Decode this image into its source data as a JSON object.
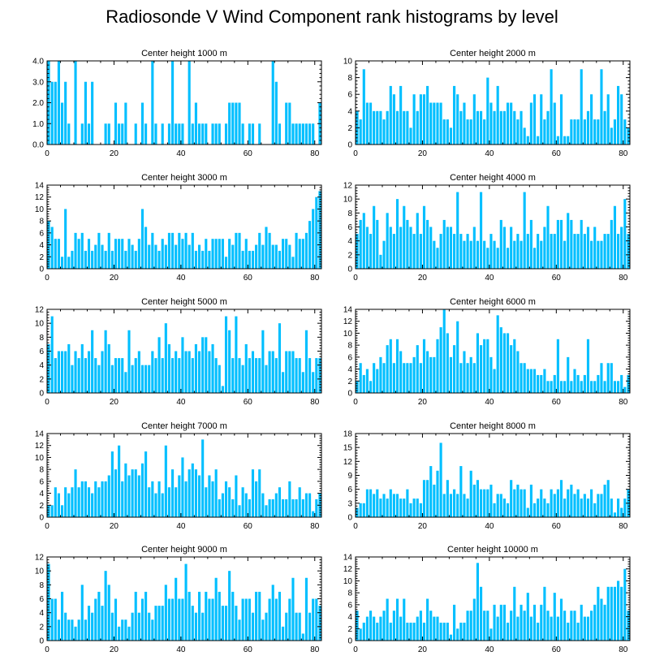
{
  "title": "Radiosonde V Wind Component rank histograms by level",
  "bar_color": "#00BFFF",
  "chart_data": [
    {
      "type": "bar",
      "title": "Center height 1000 m",
      "ylim": [
        0,
        4
      ],
      "yticks": [
        0,
        1,
        2,
        3,
        4
      ],
      "ytick_labels": [
        "0.0",
        "1.0",
        "2.0",
        "3.0",
        "4.0"
      ],
      "xticks": [
        0,
        20,
        40,
        60,
        80
      ],
      "xlim": [
        0,
        82
      ],
      "values": [
        4,
        3,
        3,
        4,
        2,
        3,
        1,
        0,
        4,
        0,
        1,
        3,
        1,
        3,
        0,
        0,
        0,
        1,
        1,
        0,
        2,
        1,
        1,
        2,
        0,
        0,
        1,
        0,
        2,
        1,
        0,
        4,
        1,
        0,
        1,
        0,
        1,
        4,
        1,
        1,
        1,
        0,
        4,
        1,
        2,
        1,
        1,
        1,
        0,
        1,
        1,
        1,
        0,
        1,
        2,
        2,
        2,
        2,
        1,
        0,
        1,
        1,
        0,
        1,
        0,
        0,
        0,
        4,
        3,
        1,
        0,
        2,
        2,
        1,
        1,
        1,
        1,
        1,
        1,
        1,
        0,
        2
      ]
    },
    {
      "type": "bar",
      "title": "Center height 2000 m",
      "ylim": [
        0,
        10
      ],
      "yticks": [
        0,
        2,
        4,
        6,
        8,
        10
      ],
      "ytick_labels": [
        "0",
        "2",
        "4",
        "6",
        "8",
        "10"
      ],
      "xticks": [
        0,
        20,
        40,
        60,
        80
      ],
      "xlim": [
        0,
        82
      ],
      "values": [
        4,
        3,
        9,
        5,
        5,
        4,
        4,
        4,
        3,
        4,
        7,
        6,
        4,
        7,
        4,
        4,
        2,
        6,
        4,
        6,
        6,
        7,
        5,
        5,
        5,
        5,
        3,
        3,
        2,
        7,
        6,
        4,
        5,
        3,
        3,
        6,
        4,
        4,
        3,
        8,
        5,
        4,
        7,
        4,
        4,
        5,
        5,
        4,
        3,
        4,
        2,
        1,
        5,
        6,
        1,
        6,
        3,
        4,
        9,
        5,
        1,
        6,
        1,
        1,
        3,
        3,
        3,
        9,
        3,
        4,
        6,
        3,
        3,
        9,
        4,
        6,
        2,
        3,
        7,
        6,
        3,
        2
      ]
    },
    {
      "type": "bar",
      "title": "Center height 3000 m",
      "ylim": [
        0,
        14
      ],
      "yticks": [
        0,
        2,
        4,
        6,
        8,
        10,
        12,
        14
      ],
      "ytick_labels": [
        "0",
        "2",
        "4",
        "6",
        "8",
        "10",
        "12",
        "14"
      ],
      "xticks": [
        0,
        20,
        40,
        60,
        80
      ],
      "xlim": [
        0,
        82
      ],
      "values": [
        8,
        7,
        5,
        5,
        2,
        10,
        2,
        3,
        6,
        5,
        6,
        3,
        5,
        3,
        4,
        6,
        4,
        3,
        6,
        3,
        5,
        5,
        5,
        3,
        5,
        4,
        3,
        5,
        10,
        7,
        4,
        6,
        4,
        3,
        5,
        4,
        6,
        6,
        4,
        6,
        5,
        6,
        4,
        6,
        3,
        4,
        3,
        5,
        3,
        5,
        5,
        5,
        5,
        2,
        5,
        4,
        6,
        6,
        3,
        5,
        3,
        3,
        4,
        6,
        4,
        7,
        6,
        4,
        4,
        3,
        5,
        5,
        4,
        2,
        6,
        5,
        5,
        6,
        8,
        10,
        12,
        13
      ]
    },
    {
      "type": "bar",
      "title": "Center height 4000 m",
      "ylim": [
        0,
        12
      ],
      "yticks": [
        0,
        2,
        4,
        6,
        8,
        10,
        12
      ],
      "ytick_labels": [
        "0",
        "2",
        "4",
        "6",
        "8",
        "10",
        "12"
      ],
      "xticks": [
        0,
        20,
        40,
        60,
        80
      ],
      "xlim": [
        0,
        82
      ],
      "values": [
        5,
        7,
        8,
        6,
        5,
        9,
        7,
        2,
        4,
        8,
        6,
        5,
        10,
        6,
        9,
        7,
        6,
        5,
        8,
        5,
        9,
        7,
        6,
        4,
        3,
        5,
        7,
        6,
        6,
        5,
        11,
        5,
        4,
        5,
        4,
        6,
        4,
        11,
        4,
        3,
        5,
        4,
        3,
        7,
        6,
        3,
        6,
        4,
        5,
        4,
        11,
        5,
        7,
        3,
        5,
        4,
        6,
        9,
        5,
        5,
        7,
        7,
        4,
        8,
        7,
        5,
        5,
        7,
        5,
        6,
        4,
        6,
        4,
        4,
        5,
        5,
        7,
        9,
        5,
        6,
        10,
        5
      ]
    },
    {
      "type": "bar",
      "title": "Center height 5000 m",
      "ylim": [
        0,
        12
      ],
      "yticks": [
        0,
        2,
        4,
        6,
        8,
        10,
        12
      ],
      "ytick_labels": [
        "0",
        "2",
        "4",
        "6",
        "8",
        "10",
        "12"
      ],
      "xticks": [
        0,
        20,
        40,
        60,
        80
      ],
      "xlim": [
        0,
        82
      ],
      "values": [
        7,
        11,
        5,
        6,
        6,
        6,
        7,
        4,
        6,
        5,
        7,
        5,
        6,
        9,
        5,
        4,
        6,
        9,
        7,
        4,
        5,
        5,
        5,
        3,
        9,
        4,
        5,
        6,
        4,
        4,
        4,
        6,
        5,
        8,
        5,
        10,
        7,
        5,
        6,
        5,
        8,
        6,
        6,
        5,
        7,
        6,
        8,
        8,
        6,
        7,
        5,
        4,
        1,
        11,
        9,
        5,
        11,
        5,
        4,
        7,
        5,
        6,
        5,
        5,
        9,
        4,
        6,
        6,
        5,
        10,
        3,
        6,
        6,
        6,
        5,
        5,
        3,
        9,
        5,
        3,
        5,
        5
      ]
    },
    {
      "type": "bar",
      "title": "Center height 6000 m",
      "ylim": [
        0,
        14
      ],
      "yticks": [
        0,
        2,
        4,
        6,
        8,
        10,
        12,
        14
      ],
      "ytick_labels": [
        "0",
        "2",
        "4",
        "6",
        "8",
        "10",
        "12",
        "14"
      ],
      "xticks": [
        0,
        20,
        40,
        60,
        80
      ],
      "xlim": [
        0,
        82
      ],
      "values": [
        2,
        5,
        3,
        4,
        2,
        5,
        4,
        6,
        5,
        8,
        9,
        5,
        9,
        7,
        5,
        5,
        5,
        6,
        8,
        5,
        9,
        7,
        6,
        6,
        9,
        11,
        14,
        10,
        6,
        8,
        12,
        5,
        7,
        5,
        6,
        5,
        10,
        8,
        9,
        9,
        6,
        4,
        13,
        11,
        10,
        10,
        8,
        9,
        7,
        5,
        5,
        4,
        4,
        4,
        3,
        3,
        4,
        2,
        2,
        3,
        9,
        2,
        2,
        6,
        2,
        4,
        3,
        2,
        3,
        9,
        2,
        2,
        3,
        5,
        2,
        5,
        5,
        2,
        2,
        3,
        1,
        3
      ]
    },
    {
      "type": "bar",
      "title": "Center height 7000 m",
      "ylim": [
        0,
        14
      ],
      "yticks": [
        0,
        2,
        4,
        6,
        8,
        10,
        12,
        14
      ],
      "ytick_labels": [
        "0",
        "2",
        "4",
        "6",
        "8",
        "10",
        "12",
        "14"
      ],
      "xticks": [
        0,
        20,
        40,
        60,
        80
      ],
      "xlim": [
        0,
        82
      ],
      "values": [
        2,
        2,
        5,
        4,
        2,
        5,
        4,
        5,
        8,
        5,
        6,
        6,
        5,
        4,
        6,
        5,
        6,
        6,
        7,
        11,
        8,
        12,
        6,
        9,
        7,
        8,
        8,
        7,
        9,
        11,
        5,
        6,
        4,
        6,
        4,
        12,
        5,
        8,
        5,
        7,
        10,
        6,
        8,
        9,
        8,
        7,
        13,
        5,
        7,
        6,
        8,
        3,
        4,
        6,
        5,
        3,
        7,
        2,
        5,
        4,
        3,
        8,
        6,
        8,
        4,
        2,
        3,
        3,
        4,
        5,
        3,
        3,
        6,
        3,
        3,
        5,
        3,
        4,
        4,
        1,
        3,
        4
      ]
    },
    {
      "type": "bar",
      "title": "Center height 8000 m",
      "ylim": [
        0,
        18
      ],
      "yticks": [
        0,
        3,
        6,
        9,
        12,
        15,
        18
      ],
      "ytick_labels": [
        "0",
        "3",
        "6",
        "9",
        "12",
        "15",
        "18"
      ],
      "xticks": [
        0,
        20,
        40,
        60,
        80
      ],
      "xlim": [
        0,
        82
      ],
      "values": [
        2,
        3,
        3,
        6,
        6,
        5,
        6,
        4,
        5,
        4,
        6,
        5,
        5,
        4,
        4,
        6,
        3,
        4,
        4,
        3,
        8,
        8,
        11,
        7,
        10,
        16,
        5,
        8,
        5,
        6,
        5,
        11,
        5,
        4,
        10,
        7,
        8,
        6,
        6,
        6,
        7,
        3,
        5,
        5,
        4,
        3,
        8,
        6,
        7,
        6,
        6,
        2,
        7,
        3,
        4,
        6,
        4,
        3,
        6,
        5,
        6,
        8,
        4,
        6,
        7,
        5,
        6,
        4,
        5,
        4,
        6,
        3,
        5,
        5,
        7,
        8,
        4,
        1,
        4,
        2,
        4,
        6
      ]
    },
    {
      "type": "bar",
      "title": "Center height 9000 m",
      "ylim": [
        0,
        12
      ],
      "yticks": [
        0,
        2,
        4,
        6,
        8,
        10,
        12
      ],
      "ytick_labels": [
        "0",
        "2",
        "4",
        "6",
        "8",
        "10",
        "12"
      ],
      "xticks": [
        0,
        20,
        40,
        60,
        80
      ],
      "xlim": [
        0,
        82
      ],
      "values": [
        11,
        6,
        6,
        3,
        7,
        4,
        3,
        3,
        2,
        3,
        8,
        3,
        5,
        4,
        6,
        7,
        5,
        10,
        8,
        4,
        6,
        2,
        3,
        3,
        2,
        4,
        7,
        4,
        6,
        7,
        4,
        3,
        5,
        5,
        5,
        8,
        6,
        6,
        9,
        6,
        6,
        11,
        7,
        5,
        4,
        7,
        4,
        7,
        6,
        6,
        9,
        7,
        5,
        5,
        10,
        7,
        5,
        3,
        6,
        6,
        6,
        4,
        7,
        7,
        3,
        4,
        6,
        8,
        6,
        7,
        2,
        4,
        6,
        9,
        4,
        4,
        1,
        9,
        4,
        6,
        6,
        5
      ]
    },
    {
      "type": "bar",
      "title": "Center height 10000 m",
      "ylim": [
        0,
        14
      ],
      "yticks": [
        0,
        2,
        4,
        6,
        8,
        10,
        12,
        14
      ],
      "ytick_labels": [
        "0",
        "2",
        "4",
        "6",
        "8",
        "10",
        "12",
        "14"
      ],
      "xticks": [
        0,
        20,
        40,
        60,
        80
      ],
      "xlim": [
        0,
        82
      ],
      "values": [
        5,
        2,
        3,
        4,
        5,
        4,
        3,
        4,
        5,
        7,
        3,
        5,
        7,
        4,
        7,
        3,
        3,
        3,
        4,
        5,
        3,
        7,
        5,
        4,
        4,
        3,
        3,
        3,
        1,
        6,
        2,
        3,
        3,
        5,
        5,
        7,
        13,
        9,
        5,
        5,
        2,
        6,
        4,
        6,
        6,
        3,
        5,
        9,
        4,
        6,
        5,
        8,
        4,
        6,
        3,
        6,
        9,
        5,
        4,
        8,
        4,
        7,
        5,
        3,
        5,
        5,
        3,
        6,
        4,
        4,
        5,
        6,
        9,
        7,
        6,
        9,
        9,
        9,
        10,
        9,
        12,
        5
      ]
    }
  ]
}
